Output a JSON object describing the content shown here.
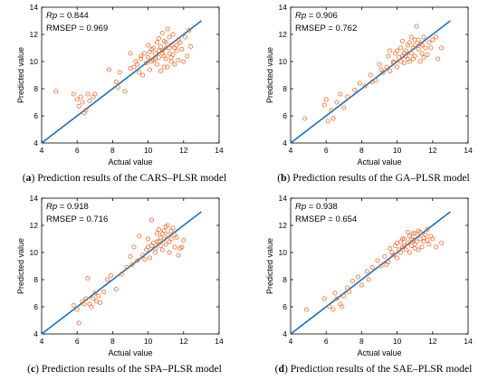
{
  "colors": {
    "line": "#1f6fb4",
    "marker": "#e8692c",
    "axis": "#000000"
  },
  "chart_data": [
    {
      "type": "scatter",
      "panel_letter": "a",
      "caption": "Prediction results of the CARS–PLSR model",
      "xlabel": "Actual value",
      "ylabel": "Predicted value",
      "xlim": [
        4,
        14
      ],
      "ylim": [
        4,
        14
      ],
      "xticks": [
        4,
        6,
        8,
        10,
        12,
        14
      ],
      "yticks": [
        4,
        6,
        8,
        10,
        12,
        14
      ],
      "stat1_label": "Rp",
      "stat1_value": "= 0.844",
      "stat2_label": "RMSEP",
      "stat2_value": "= 0.969",
      "fit_line": [
        [
          4,
          4
        ],
        [
          13,
          13
        ]
      ],
      "points": [
        [
          4.8,
          7.8
        ],
        [
          5.8,
          7.6
        ],
        [
          6.0,
          7.2
        ],
        [
          6.1,
          6.7
        ],
        [
          6.2,
          7.4
        ],
        [
          6.3,
          7.0
        ],
        [
          6.5,
          6.4
        ],
        [
          6.6,
          7.6
        ],
        [
          6.7,
          7.1
        ],
        [
          6.9,
          7.4
        ],
        [
          7.0,
          7.6
        ],
        [
          6.4,
          6.2
        ],
        [
          7.8,
          9.4
        ],
        [
          8.2,
          8.5
        ],
        [
          8.3,
          8.1
        ],
        [
          8.7,
          7.8
        ],
        [
          9.0,
          10.6
        ],
        [
          9.2,
          9.6
        ],
        [
          9.3,
          10.0
        ],
        [
          9.5,
          9.2
        ],
        [
          9.6,
          10.2
        ],
        [
          9.7,
          9.0
        ],
        [
          9.8,
          10.6
        ],
        [
          9.9,
          9.9
        ],
        [
          10.0,
          10.3
        ],
        [
          10.1,
          9.4
        ],
        [
          10.2,
          10.9
        ],
        [
          10.3,
          11.0
        ],
        [
          10.3,
          10.1
        ],
        [
          10.4,
          10.6
        ],
        [
          10.5,
          11.4
        ],
        [
          10.5,
          9.8
        ],
        [
          10.6,
          10.3
        ],
        [
          10.7,
          11.1
        ],
        [
          10.7,
          9.3
        ],
        [
          10.8,
          10.8
        ],
        [
          10.9,
          11.5
        ],
        [
          10.9,
          9.6
        ],
        [
          11.0,
          10.2
        ],
        [
          11.0,
          11.0
        ],
        [
          11.1,
          12.4
        ],
        [
          11.1,
          9.6
        ],
        [
          11.2,
          10.6
        ],
        [
          11.2,
          11.8
        ],
        [
          11.3,
          10.0
        ],
        [
          11.3,
          11.2
        ],
        [
          11.4,
          10.5
        ],
        [
          11.4,
          12.0
        ],
        [
          11.5,
          11.0
        ],
        [
          11.5,
          9.8
        ],
        [
          11.6,
          10.8
        ],
        [
          11.7,
          11.6
        ],
        [
          11.8,
          11.4
        ],
        [
          11.9,
          10.9
        ],
        [
          12.0,
          10.0
        ],
        [
          12.1,
          11.8
        ],
        [
          12.2,
          10.4
        ],
        [
          12.3,
          12.3
        ],
        [
          10.6,
          11.7
        ],
        [
          10.8,
          12.1
        ],
        [
          11.0,
          11.4
        ],
        [
          10.2,
          10.0
        ],
        [
          10.4,
          10.2
        ],
        [
          10.6,
          10.8
        ],
        [
          10.8,
          10.6
        ],
        [
          11.2,
          11.0
        ],
        [
          11.6,
          11.2
        ],
        [
          9.4,
          9.8
        ],
        [
          9.0,
          9.5
        ],
        [
          8.4,
          9.2
        ],
        [
          10.0,
          11.2
        ],
        [
          9.6,
          10.4
        ],
        [
          11.3,
          10.3
        ],
        [
          11.7,
          10.1
        ],
        [
          12.4,
          11.1
        ],
        [
          10.9,
          10.4
        ],
        [
          10.1,
          10.7
        ]
      ]
    },
    {
      "type": "scatter",
      "panel_letter": "b",
      "caption": "Prediction results of the GA–PLSR model",
      "xlabel": "Actual value",
      "ylabel": "Predicted value",
      "xlim": [
        4,
        14
      ],
      "ylim": [
        4,
        14
      ],
      "xticks": [
        4,
        6,
        8,
        10,
        12,
        14
      ],
      "yticks": [
        4,
        6,
        8,
        10,
        12,
        14
      ],
      "stat1_label": "Rp",
      "stat1_value": "= 0.906",
      "stat2_label": "RMSEP",
      "stat2_value": "= 0.762",
      "fit_line": [
        [
          4,
          4
        ],
        [
          13,
          13
        ]
      ],
      "points": [
        [
          4.8,
          5.8
        ],
        [
          5.9,
          6.8
        ],
        [
          6.0,
          7.2
        ],
        [
          6.1,
          5.6
        ],
        [
          6.3,
          6.4
        ],
        [
          6.4,
          5.8
        ],
        [
          6.6,
          7.0
        ],
        [
          6.8,
          7.6
        ],
        [
          7.0,
          6.6
        ],
        [
          7.2,
          7.4
        ],
        [
          7.6,
          7.9
        ],
        [
          7.9,
          8.4
        ],
        [
          8.2,
          8.2
        ],
        [
          8.5,
          9.0
        ],
        [
          8.8,
          8.6
        ],
        [
          9.0,
          9.8
        ],
        [
          9.2,
          9.2
        ],
        [
          9.4,
          9.6
        ],
        [
          9.5,
          10.4
        ],
        [
          9.6,
          9.3
        ],
        [
          9.8,
          10.0
        ],
        [
          9.9,
          10.6
        ],
        [
          10.0,
          9.6
        ],
        [
          10.1,
          10.3
        ],
        [
          10.2,
          11.0
        ],
        [
          10.3,
          10.4
        ],
        [
          10.4,
          9.9
        ],
        [
          10.5,
          10.8
        ],
        [
          10.6,
          10.2
        ],
        [
          10.7,
          11.4
        ],
        [
          10.8,
          10.6
        ],
        [
          10.9,
          11.0
        ],
        [
          11.0,
          10.4
        ],
        [
          11.0,
          11.6
        ],
        [
          11.1,
          12.6
        ],
        [
          11.2,
          10.9
        ],
        [
          11.3,
          11.3
        ],
        [
          11.4,
          10.6
        ],
        [
          11.5,
          11.8
        ],
        [
          11.6,
          11.0
        ],
        [
          11.7,
          10.5
        ],
        [
          11.8,
          11.4
        ],
        [
          12.0,
          11.6
        ],
        [
          12.3,
          10.2
        ],
        [
          12.5,
          11.0
        ],
        [
          10.6,
          11.2
        ],
        [
          10.8,
          11.8
        ],
        [
          11.0,
          11.2
        ],
        [
          10.2,
          10.0
        ],
        [
          10.4,
          10.6
        ],
        [
          10.9,
          10.2
        ],
        [
          11.3,
          10.0
        ],
        [
          11.5,
          10.3
        ],
        [
          9.8,
          9.9
        ],
        [
          9.1,
          9.4
        ],
        [
          8.6,
          8.5
        ],
        [
          10.5,
          10.4
        ],
        [
          11.2,
          11.6
        ],
        [
          11.9,
          11.0
        ],
        [
          10.0,
          10.8
        ],
        [
          10.7,
          10.0
        ],
        [
          12.2,
          11.8
        ],
        [
          11.4,
          11.2
        ],
        [
          9.6,
          10.8
        ],
        [
          10.3,
          11.5
        ]
      ]
    },
    {
      "type": "scatter",
      "panel_letter": "c",
      "caption": "Prediction results of the SPA–PLSR model",
      "xlabel": "Actual value",
      "ylabel": "Predicted value",
      "xlim": [
        4,
        14
      ],
      "ylim": [
        4,
        14
      ],
      "xticks": [
        4,
        6,
        8,
        10,
        12,
        14
      ],
      "yticks": [
        4,
        6,
        8,
        10,
        12,
        14
      ],
      "stat1_label": "Rp",
      "stat1_value": "= 0.918",
      "stat2_label": "RMSEP",
      "stat2_value": "= 0.716",
      "fit_line": [
        [
          4,
          4
        ],
        [
          13,
          13
        ]
      ],
      "points": [
        [
          5.8,
          6.1
        ],
        [
          6.0,
          5.8
        ],
        [
          6.1,
          4.8
        ],
        [
          6.3,
          6.4
        ],
        [
          6.5,
          6.6
        ],
        [
          6.6,
          8.1
        ],
        [
          6.7,
          6.2
        ],
        [
          6.8,
          6.0
        ],
        [
          6.9,
          6.6
        ],
        [
          7.0,
          7.0
        ],
        [
          7.1,
          6.4
        ],
        [
          7.3,
          6.3
        ],
        [
          7.5,
          7.1
        ],
        [
          7.7,
          8.0
        ],
        [
          7.9,
          8.3
        ],
        [
          8.2,
          7.3
        ],
        [
          8.5,
          8.4
        ],
        [
          8.8,
          8.9
        ],
        [
          9.0,
          9.7
        ],
        [
          9.2,
          10.4
        ],
        [
          9.4,
          9.4
        ],
        [
          9.5,
          11.2
        ],
        [
          9.7,
          9.8
        ],
        [
          9.9,
          10.2
        ],
        [
          10.0,
          11.0
        ],
        [
          10.1,
          9.6
        ],
        [
          10.2,
          12.4
        ],
        [
          10.3,
          10.7
        ],
        [
          10.4,
          10.0
        ],
        [
          10.5,
          11.4
        ],
        [
          10.6,
          10.8
        ],
        [
          10.7,
          11.1
        ],
        [
          10.8,
          10.2
        ],
        [
          10.9,
          11.6
        ],
        [
          11.0,
          10.6
        ],
        [
          11.1,
          11.3
        ],
        [
          11.2,
          10.0
        ],
        [
          11.3,
          11.0
        ],
        [
          11.4,
          11.8
        ],
        [
          11.5,
          10.4
        ],
        [
          11.6,
          11.1
        ],
        [
          11.7,
          9.8
        ],
        [
          11.8,
          10.3
        ],
        [
          12.0,
          10.9
        ],
        [
          10.6,
          11.7
        ],
        [
          10.8,
          11.4
        ],
        [
          11.0,
          11.9
        ],
        [
          10.4,
          10.3
        ],
        [
          10.7,
          10.5
        ],
        [
          11.2,
          10.8
        ],
        [
          9.8,
          9.5
        ],
        [
          9.1,
          9.1
        ],
        [
          10.5,
          10.8
        ],
        [
          11.3,
          11.6
        ],
        [
          10.9,
          11.0
        ],
        [
          11.9,
          10.4
        ],
        [
          10.2,
          10.5
        ],
        [
          6.4,
          6.2
        ],
        [
          7.2,
          6.8
        ],
        [
          11.5,
          11.3
        ],
        [
          10.0,
          10.4
        ],
        [
          11.1,
          12.0
        ]
      ]
    },
    {
      "type": "scatter",
      "panel_letter": "d",
      "caption": "Prediction results of the SAE–PLSR model",
      "xlabel": "Actual value",
      "ylabel": "Predicted value",
      "xlim": [
        4,
        14
      ],
      "ylim": [
        4,
        14
      ],
      "xticks": [
        4,
        6,
        8,
        10,
        12,
        14
      ],
      "yticks": [
        4,
        6,
        8,
        10,
        12,
        14
      ],
      "stat1_label": "Rp",
      "stat1_value": "= 0.938",
      "stat2_label": "RMSEP",
      "stat2_value": "= 0.654",
      "fit_line": [
        [
          4,
          4
        ],
        [
          13,
          13
        ]
      ],
      "points": [
        [
          4.9,
          5.8
        ],
        [
          5.9,
          6.6
        ],
        [
          6.2,
          6.0
        ],
        [
          6.4,
          5.8
        ],
        [
          6.5,
          7.0
        ],
        [
          6.6,
          6.6
        ],
        [
          6.8,
          6.2
        ],
        [
          7.0,
          6.8
        ],
        [
          7.2,
          7.4
        ],
        [
          7.5,
          7.9
        ],
        [
          7.8,
          8.2
        ],
        [
          8.0,
          7.6
        ],
        [
          8.3,
          8.6
        ],
        [
          8.6,
          8.9
        ],
        [
          8.9,
          9.4
        ],
        [
          9.1,
          9.0
        ],
        [
          9.3,
          9.7
        ],
        [
          9.5,
          9.3
        ],
        [
          9.7,
          10.0
        ],
        [
          9.9,
          10.5
        ],
        [
          10.0,
          9.6
        ],
        [
          10.1,
          10.2
        ],
        [
          10.2,
          10.8
        ],
        [
          10.3,
          10.4
        ],
        [
          10.4,
          11.0
        ],
        [
          10.5,
          10.2
        ],
        [
          10.6,
          10.7
        ],
        [
          10.7,
          11.2
        ],
        [
          10.8,
          10.5
        ],
        [
          10.9,
          10.9
        ],
        [
          11.0,
          11.4
        ],
        [
          11.0,
          10.3
        ],
        [
          11.1,
          10.8
        ],
        [
          11.2,
          11.6
        ],
        [
          11.3,
          11.0
        ],
        [
          11.4,
          10.4
        ],
        [
          11.5,
          10.8
        ],
        [
          11.6,
          11.3
        ],
        [
          11.7,
          11.7
        ],
        [
          11.8,
          10.6
        ],
        [
          12.0,
          11.0
        ],
        [
          12.2,
          10.4
        ],
        [
          12.5,
          10.7
        ],
        [
          10.6,
          11.5
        ],
        [
          10.8,
          11.0
        ],
        [
          11.0,
          10.6
        ],
        [
          10.4,
          10.5
        ],
        [
          10.2,
          10.0
        ],
        [
          9.8,
          9.8
        ],
        [
          9.4,
          9.1
        ],
        [
          11.2,
          10.2
        ],
        [
          11.5,
          11.1
        ],
        [
          10.9,
          11.4
        ],
        [
          8.4,
          8.0
        ],
        [
          7.3,
          7.1
        ],
        [
          11.7,
          10.9
        ],
        [
          10.0,
          10.7
        ],
        [
          10.7,
          10.0
        ],
        [
          11.3,
          11.5
        ],
        [
          11.9,
          11.2
        ],
        [
          6.9,
          6.0
        ],
        [
          9.6,
          10.3
        ],
        [
          10.3,
          11.0
        ]
      ]
    }
  ]
}
